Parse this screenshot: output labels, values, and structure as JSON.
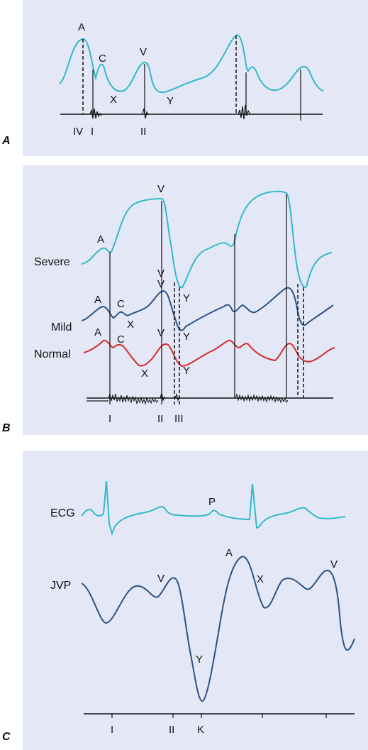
{
  "panels": [
    {
      "id": "A",
      "label": "A",
      "waves": [
        "A",
        "C",
        "X",
        "V",
        "Y"
      ],
      "sounds": [
        "IV",
        "I",
        "II"
      ]
    },
    {
      "id": "B",
      "label": "B",
      "traces": [
        {
          "name": "Severe",
          "color": "#32b9c9",
          "labels": [
            "A",
            "V",
            "V",
            "Y"
          ]
        },
        {
          "name": "Mild",
          "color": "#2c5282",
          "labels": [
            "A",
            "C",
            "X",
            "V",
            "Y"
          ]
        },
        {
          "name": "Normal",
          "color": "#d62a2a",
          "labels": [
            "A",
            "C",
            "X",
            "V",
            "Y"
          ]
        }
      ],
      "sounds": [
        "I",
        "II",
        "III"
      ]
    },
    {
      "id": "C",
      "label": "C",
      "traces": [
        {
          "name": "ECG",
          "color": "#32b9c9",
          "labels": [
            "P"
          ]
        },
        {
          "name": "JVP",
          "color": "#2c5282",
          "labels": [
            "V",
            "A",
            "X",
            "V",
            "Y"
          ]
        }
      ],
      "sounds": [
        "I",
        "II",
        "K"
      ]
    }
  ],
  "colors": {
    "panel_bg": "#e4e8f6",
    "teal": "#32b9c9",
    "navy": "#2c5282",
    "red": "#d62a2a"
  }
}
